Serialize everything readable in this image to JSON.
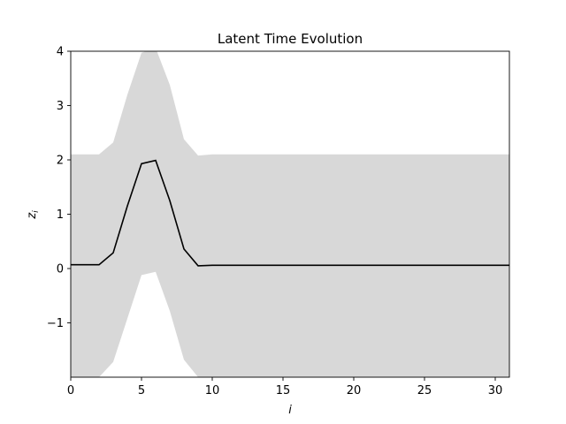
{
  "chart_data": {
    "type": "line",
    "title": "Latent Time Evolution",
    "xlabel": "i",
    "ylabel": "z",
    "ylabel_subscript": "i",
    "xlim": [
      0,
      31
    ],
    "ylim": [
      -2,
      4
    ],
    "xticks": [
      0,
      5,
      10,
      15,
      20,
      25,
      30
    ],
    "yticks": [
      -1,
      0,
      1,
      2,
      3,
      4
    ],
    "ytick_labels": [
      "−1",
      "0",
      "1",
      "2",
      "3",
      "4"
    ],
    "grid": false,
    "colors": {
      "mean_line": "#000000",
      "band_fill": "#d8d8d8"
    },
    "x": [
      0,
      1,
      2,
      3,
      4,
      5,
      6,
      7,
      8,
      9,
      10,
      11,
      12,
      13,
      14,
      15,
      16,
      17,
      18,
      19,
      20,
      21,
      22,
      23,
      24,
      25,
      26,
      27,
      28,
      29,
      30,
      31
    ],
    "series": [
      {
        "values": [
          0.07,
          0.07,
          0.07,
          0.29,
          1.15,
          1.93,
          1.99,
          1.25,
          0.36,
          0.05,
          0.06,
          0.06,
          0.06,
          0.06,
          0.06,
          0.06,
          0.06,
          0.06,
          0.06,
          0.06,
          0.06,
          0.06,
          0.06,
          0.06,
          0.06,
          0.06,
          0.06,
          0.06,
          0.06,
          0.06,
          0.06,
          0.06
        ]
      }
    ],
    "band": {
      "upper": [
        2.1,
        2.1,
        2.1,
        2.32,
        3.2,
        3.97,
        4.06,
        3.38,
        2.38,
        2.08,
        2.1,
        2.1,
        2.1,
        2.1,
        2.1,
        2.1,
        2.1,
        2.1,
        2.1,
        2.1,
        2.1,
        2.1,
        2.1,
        2.1,
        2.1,
        2.1,
        2.1,
        2.1,
        2.1,
        2.1,
        2.1,
        2.1
      ],
      "lower": [
        -2.0,
        -2.0,
        -2.0,
        -1.72,
        -0.92,
        -0.12,
        -0.06,
        -0.78,
        -1.68,
        -2.0,
        -2.0,
        -2.0,
        -2.0,
        -2.0,
        -2.0,
        -2.0,
        -2.0,
        -2.0,
        -2.0,
        -2.0,
        -2.0,
        -2.0,
        -2.0,
        -2.0,
        -2.0,
        -2.0,
        -2.0,
        -2.0,
        -2.0,
        -2.0,
        -2.0,
        -2.0
      ]
    }
  }
}
